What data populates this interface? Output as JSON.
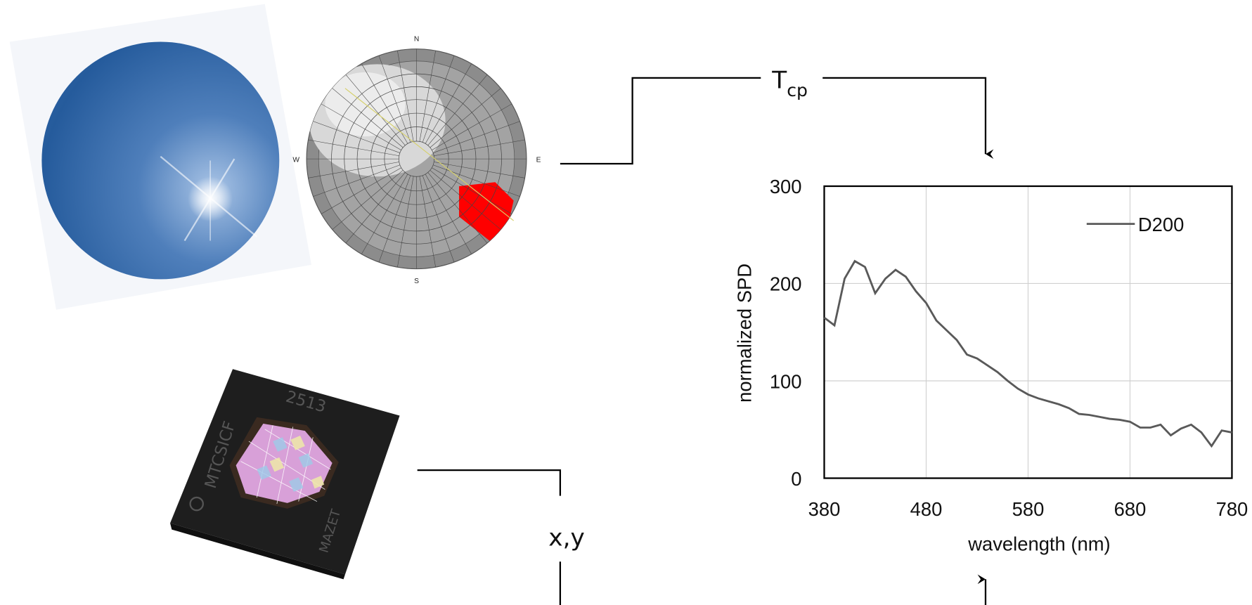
{
  "compass": [
    "N",
    "E",
    "S",
    "W"
  ],
  "chip_text": [
    "MTCSICF",
    "2513",
    "MAZET"
  ],
  "labels": {
    "tcp_main": "T",
    "tcp_sub": "cp",
    "xy": "x,y"
  },
  "chart_data": {
    "type": "line",
    "x_label": "wavelength (nm)",
    "y_label": "normalized SPD",
    "x": [
      380,
      390,
      400,
      410,
      420,
      430,
      440,
      450,
      460,
      470,
      480,
      490,
      500,
      510,
      520,
      530,
      540,
      550,
      560,
      570,
      580,
      590,
      600,
      610,
      620,
      630,
      640,
      650,
      660,
      670,
      680,
      690,
      700,
      710,
      720,
      730,
      740,
      750,
      760,
      770,
      780
    ],
    "series": [
      {
        "name": "D200",
        "color": "#595959",
        "values": [
          165,
          157,
          205,
          223,
          217,
          190,
          205,
          214,
          207,
          192,
          180,
          162,
          152,
          142,
          127,
          123,
          116,
          109,
          100,
          92,
          86,
          82,
          79,
          76,
          72,
          66,
          65,
          63,
          61,
          60,
          58,
          52,
          52,
          55,
          44,
          51,
          55,
          47,
          33,
          49,
          47
        ]
      }
    ],
    "xlim": [
      380,
      780
    ],
    "xticks": [
      380,
      480,
      580,
      680,
      780
    ],
    "ylim": [
      0,
      300
    ],
    "yticks": [
      0,
      100,
      200,
      300
    ],
    "grid": true,
    "legend": "upper right"
  }
}
